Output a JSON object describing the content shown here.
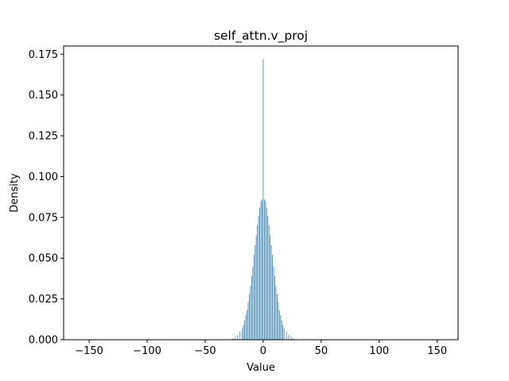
{
  "chart_data": {
    "type": "bar",
    "title": "self_attn.v_proj",
    "xlabel": "Value",
    "ylabel": "Density",
    "xlim": [
      -172,
      168
    ],
    "ylim": [
      0,
      0.18
    ],
    "xticks": [
      -150,
      -100,
      -50,
      0,
      50,
      100,
      150
    ],
    "xtick_labels": [
      "−150",
      "−100",
      "−50",
      "0",
      "50",
      "100",
      "150"
    ],
    "yticks": [
      0,
      0.025,
      0.05,
      0.075,
      0.1,
      0.125,
      0.15,
      0.175
    ],
    "ytick_labels": [
      "0.000",
      "0.025",
      "0.050",
      "0.075",
      "0.100",
      "0.125",
      "0.150",
      "0.175"
    ],
    "bar_color": "#4c8fb8",
    "grid": false,
    "x": [
      -26,
      -24,
      -22,
      -20,
      -18,
      -17,
      -16,
      -15,
      -14,
      -13,
      -12,
      -11,
      -10,
      -9,
      -8,
      -7,
      -6,
      -5,
      -4,
      -3,
      -2,
      -1,
      0,
      1,
      2,
      3,
      4,
      5,
      6,
      7,
      8,
      9,
      10,
      11,
      12,
      13,
      14,
      15,
      16,
      17,
      18,
      20,
      22,
      24,
      26
    ],
    "values": [
      0.001,
      0.002,
      0.003,
      0.005,
      0.007,
      0.009,
      0.012,
      0.015,
      0.018,
      0.023,
      0.028,
      0.033,
      0.039,
      0.045,
      0.052,
      0.058,
      0.064,
      0.07,
      0.076,
      0.081,
      0.085,
      0.086,
      0.172,
      0.086,
      0.085,
      0.081,
      0.076,
      0.07,
      0.064,
      0.058,
      0.052,
      0.045,
      0.039,
      0.033,
      0.028,
      0.023,
      0.018,
      0.015,
      0.012,
      0.009,
      0.007,
      0.005,
      0.003,
      0.002,
      0.001
    ]
  }
}
